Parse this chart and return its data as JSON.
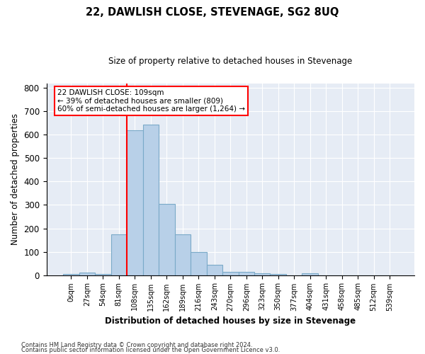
{
  "title": "22, DAWLISH CLOSE, STEVENAGE, SG2 8UQ",
  "subtitle": "Size of property relative to detached houses in Stevenage",
  "xlabel": "Distribution of detached houses by size in Stevenage",
  "ylabel": "Number of detached properties",
  "footnote1": "Contains HM Land Registry data © Crown copyright and database right 2024.",
  "footnote2": "Contains public sector information licensed under the Open Government Licence v3.0.",
  "bin_labels": [
    "0sqm",
    "27sqm",
    "54sqm",
    "81sqm",
    "108sqm",
    "135sqm",
    "162sqm",
    "189sqm",
    "216sqm",
    "243sqm",
    "270sqm",
    "296sqm",
    "323sqm",
    "350sqm",
    "377sqm",
    "404sqm",
    "431sqm",
    "458sqm",
    "485sqm",
    "512sqm",
    "539sqm"
  ],
  "bar_values": [
    5,
    12,
    4,
    175,
    620,
    645,
    305,
    175,
    100,
    45,
    15,
    15,
    8,
    5,
    0,
    8,
    0,
    0,
    0,
    0,
    0
  ],
  "bar_color": "#b8d0e8",
  "bar_edgecolor": "#7aaac8",
  "bar_linewidth": 0.8,
  "bg_color": "#e6ecf5",
  "grid_color": "#ffffff",
  "red_line_bin_index": 4,
  "annotation_text": "22 DAWLISH CLOSE: 109sqm\n← 39% of detached houses are smaller (809)\n60% of semi-detached houses are larger (1,264) →",
  "annotation_box_color": "white",
  "annotation_box_edgecolor": "red",
  "ylim": [
    0,
    820
  ],
  "yticks": [
    0,
    100,
    200,
    300,
    400,
    500,
    600,
    700,
    800
  ]
}
